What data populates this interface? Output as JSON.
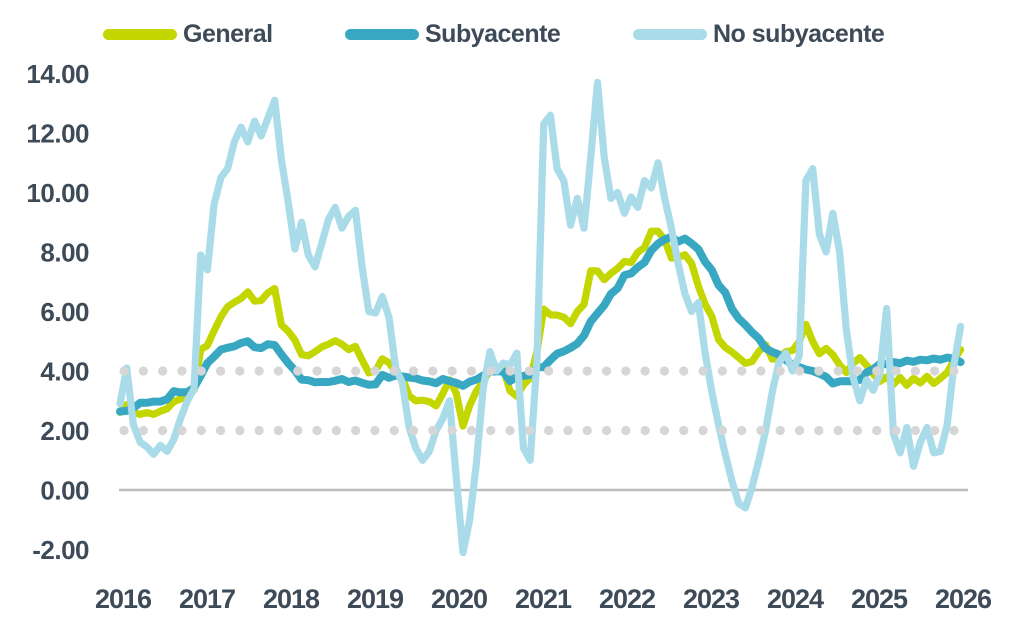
{
  "legend": {
    "items": [
      {
        "id": "general",
        "label": "General",
        "color": "#c3d600"
      },
      {
        "id": "subyacente",
        "label": "Subyacente",
        "color": "#38a7c1"
      },
      {
        "id": "no-subyacente",
        "label": "No subyacente",
        "color": "#a9dbe9"
      }
    ]
  },
  "chart_data": {
    "type": "line",
    "title": "",
    "xlabel": "",
    "ylabel": "",
    "x_start_year": 2016,
    "x_frequency": "monthly",
    "x_end": "2026-06",
    "ylim": [
      -2,
      14
    ],
    "grid": "off",
    "legend_position": "top",
    "yticks": [
      {
        "value": 14,
        "label": "14.00"
      },
      {
        "value": 12,
        "label": "12.00"
      },
      {
        "value": 10,
        "label": "10.00"
      },
      {
        "value": 8,
        "label": "8.00"
      },
      {
        "value": 6,
        "label": "6.00"
      },
      {
        "value": 4,
        "label": "4.00"
      },
      {
        "value": 2,
        "label": "2.00"
      },
      {
        "value": 0,
        "label": "0.00"
      },
      {
        "value": -2,
        "label": "-2.00"
      }
    ],
    "xticks": [
      "2016",
      "2017",
      "2018",
      "2019",
      "2020",
      "2021",
      "2022",
      "2023",
      "2024",
      "2025",
      "2026"
    ],
    "reference_lines": [
      {
        "y": 4,
        "style": "dotted",
        "color": "#d6d6d6"
      },
      {
        "y": 2,
        "style": "dotted",
        "color": "#d6d6d6"
      }
    ],
    "zero_line": {
      "y": 0,
      "color": "#bdbdbd"
    },
    "series": [
      {
        "id": "general",
        "name": "General",
        "color": "#c3d600",
        "values": [
          2.61,
          2.87,
          2.6,
          2.54,
          2.6,
          2.54,
          2.65,
          2.73,
          2.97,
          3.06,
          3.31,
          3.36,
          4.72,
          4.86,
          5.35,
          5.82,
          6.16,
          6.31,
          6.44,
          6.66,
          6.35,
          6.37,
          6.63,
          6.77,
          5.55,
          5.34,
          5.04,
          4.55,
          4.51,
          4.65,
          4.81,
          4.9,
          5.02,
          4.9,
          4.72,
          4.83,
          4.37,
          3.94,
          4.0,
          4.41,
          4.28,
          3.95,
          3.78,
          3.16,
          3.0,
          3.02,
          2.97,
          2.83,
          3.24,
          3.7,
          3.25,
          2.15,
          2.84,
          3.33,
          3.62,
          4.05,
          4.01,
          4.09,
          3.33,
          3.15,
          3.54,
          3.76,
          4.67,
          6.08,
          5.89,
          5.88,
          5.81,
          5.59,
          6.0,
          6.24,
          7.37,
          7.36,
          7.07,
          7.28,
          7.45,
          7.68,
          7.65,
          7.99,
          8.15,
          8.7,
          8.7,
          8.41,
          7.8,
          7.82,
          7.91,
          7.62,
          6.85,
          6.25,
          5.84,
          5.06,
          4.79,
          4.64,
          4.45,
          4.26,
          4.32,
          4.66,
          4.88,
          4.4,
          4.42,
          4.65,
          4.69,
          4.98,
          5.57,
          4.99,
          4.58,
          4.76,
          4.55,
          4.21,
          3.95,
          4.25,
          4.45,
          4.2,
          3.9,
          3.65,
          3.8,
          3.55,
          3.78,
          3.52,
          3.75,
          3.6,
          3.82,
          3.58,
          3.75,
          3.95,
          4.35,
          4.72
        ]
      },
      {
        "id": "subyacente",
        "name": "Subyacente",
        "color": "#38a7c1",
        "values": [
          2.64,
          2.66,
          2.76,
          2.93,
          2.93,
          2.97,
          2.97,
          3.05,
          3.32,
          3.28,
          3.29,
          3.44,
          3.84,
          4.27,
          4.48,
          4.72,
          4.78,
          4.83,
          4.94,
          5.0,
          4.8,
          4.77,
          4.9,
          4.87,
          4.56,
          4.27,
          4.02,
          3.71,
          3.69,
          3.62,
          3.63,
          3.63,
          3.67,
          3.73,
          3.63,
          3.68,
          3.6,
          3.54,
          3.55,
          3.87,
          3.77,
          3.85,
          3.82,
          3.78,
          3.75,
          3.68,
          3.65,
          3.59,
          3.73,
          3.66,
          3.6,
          3.5,
          3.64,
          3.71,
          3.85,
          3.97,
          3.99,
          3.98,
          3.66,
          3.8,
          3.84,
          3.87,
          4.12,
          4.13,
          4.37,
          4.58,
          4.66,
          4.78,
          4.92,
          5.19,
          5.67,
          5.94,
          6.21,
          6.59,
          6.78,
          7.22,
          7.28,
          7.49,
          7.65,
          8.05,
          8.28,
          8.42,
          8.51,
          8.35,
          8.45,
          8.29,
          8.09,
          7.67,
          7.39,
          6.89,
          6.64,
          6.08,
          5.76,
          5.55,
          5.3,
          5.09,
          4.76,
          4.64,
          4.55,
          4.37,
          4.21,
          4.13,
          4.05,
          4.0,
          3.91,
          3.8,
          3.58,
          3.65,
          3.66,
          3.65,
          3.7,
          3.95,
          4.06,
          4.24,
          4.23,
          4.3,
          4.26,
          4.35,
          4.31,
          4.38,
          4.36,
          4.42,
          4.38,
          4.45,
          4.41,
          4.3
        ]
      },
      {
        "id": "no-subyacente",
        "name": "No subyacente",
        "color": "#a9dbe9",
        "values": [
          2.9,
          4.1,
          2.2,
          1.6,
          1.45,
          1.2,
          1.5,
          1.3,
          1.7,
          2.4,
          3.0,
          3.4,
          7.9,
          7.4,
          9.6,
          10.5,
          10.8,
          11.7,
          12.2,
          11.7,
          12.4,
          11.9,
          12.5,
          13.1,
          11.1,
          9.7,
          8.1,
          9.0,
          7.9,
          7.5,
          8.3,
          9.1,
          9.5,
          8.8,
          9.2,
          9.4,
          7.5,
          6.0,
          5.95,
          6.5,
          5.8,
          4.1,
          3.6,
          2.1,
          1.4,
          1.0,
          1.3,
          2.0,
          2.4,
          3.0,
          0.4,
          -2.1,
          -1.0,
          0.9,
          3.4,
          4.65,
          4.0,
          4.27,
          4.2,
          4.6,
          1.4,
          1.0,
          4.4,
          12.3,
          12.6,
          10.8,
          10.4,
          8.9,
          9.8,
          8.8,
          11.2,
          13.7,
          11.2,
          9.8,
          10.0,
          9.3,
          9.85,
          9.5,
          10.4,
          10.15,
          11.0,
          9.8,
          8.8,
          7.6,
          6.6,
          6.0,
          6.3,
          4.6,
          3.3,
          2.2,
          1.2,
          0.3,
          -0.45,
          -0.6,
          0.1,
          1.0,
          2.0,
          3.3,
          4.3,
          4.6,
          4.0,
          4.5,
          10.4,
          10.8,
          8.6,
          8.0,
          9.3,
          8.0,
          5.4,
          3.8,
          3.0,
          3.7,
          3.35,
          3.9,
          6.1,
          1.9,
          1.25,
          2.1,
          0.8,
          1.6,
          2.1,
          1.25,
          1.3,
          2.2,
          4.2,
          5.5
        ]
      }
    ]
  }
}
